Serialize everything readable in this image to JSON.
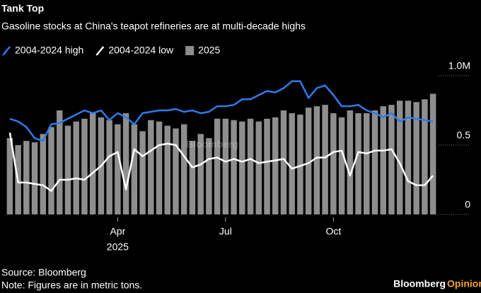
{
  "chart_data": {
    "type": "bar",
    "title": "Tank Top",
    "subtitle": "Gasoline stocks at China's teapot refineries are at multi-decade highs",
    "categories": [
      null,
      null,
      null,
      null,
      null,
      null,
      null,
      null,
      null,
      null,
      null,
      null,
      null,
      "Apr",
      null,
      null,
      null,
      null,
      null,
      null,
      null,
      null,
      null,
      null,
      null,
      null,
      "Jul",
      null,
      null,
      null,
      null,
      null,
      null,
      null,
      null,
      null,
      null,
      null,
      null,
      "Oct",
      null,
      null,
      null,
      null,
      null,
      null,
      null,
      null,
      null,
      null,
      null,
      null
    ],
    "x_year_label": "2025",
    "series": [
      {
        "name": "2004-2024 high",
        "type": "line",
        "color": "#2f7bea",
        "values": [
          0.69,
          0.67,
          0.63,
          0.55,
          0.53,
          0.65,
          0.66,
          0.69,
          0.72,
          0.75,
          0.73,
          0.75,
          0.68,
          0.73,
          0.7,
          0.65,
          0.73,
          0.74,
          0.75,
          0.75,
          0.76,
          0.74,
          0.75,
          0.73,
          0.74,
          0.78,
          0.78,
          0.79,
          0.83,
          0.83,
          0.86,
          0.89,
          0.88,
          0.91,
          0.96,
          0.96,
          0.84,
          0.91,
          0.93,
          0.86,
          0.78,
          0.78,
          0.79,
          0.75,
          0.73,
          0.7,
          0.73,
          0.67,
          0.7,
          0.69,
          0.68,
          0.67
        ]
      },
      {
        "name": "2004-2024 low",
        "type": "line",
        "color": "#ffffff",
        "values": [
          0.59,
          0.23,
          0.23,
          0.22,
          0.21,
          0.17,
          0.25,
          0.25,
          0.26,
          0.25,
          0.3,
          0.35,
          0.42,
          0.45,
          0.18,
          0.47,
          0.42,
          0.46,
          0.5,
          0.51,
          0.5,
          0.42,
          0.34,
          0.36,
          0.4,
          0.41,
          0.38,
          0.4,
          0.38,
          0.4,
          0.37,
          0.38,
          0.39,
          0.4,
          0.33,
          0.35,
          0.37,
          0.41,
          0.41,
          0.45,
          0.46,
          0.28,
          0.45,
          0.44,
          0.46,
          0.46,
          0.47,
          0.37,
          0.24,
          0.21,
          0.21,
          0.28
        ]
      },
      {
        "name": "2025",
        "type": "bar",
        "color": "#8e8e8e",
        "values": [
          0.55,
          0.5,
          0.53,
          0.52,
          0.58,
          0.63,
          0.75,
          0.64,
          0.67,
          0.69,
          0.73,
          0.7,
          0.68,
          0.65,
          0.73,
          0.65,
          0.6,
          0.68,
          0.67,
          0.64,
          0.62,
          0.65,
          0.53,
          0.58,
          0.55,
          0.69,
          0.69,
          0.68,
          0.67,
          0.69,
          0.67,
          0.69,
          0.7,
          0.75,
          0.73,
          0.72,
          0.77,
          0.78,
          0.79,
          0.73,
          0.7,
          0.75,
          0.73,
          0.73,
          0.75,
          0.78,
          0.79,
          0.82,
          0.82,
          0.81,
          0.83,
          0.87
        ]
      }
    ],
    "ylim": [
      0,
      1.0
    ],
    "yticks": [
      0,
      0.5,
      {
        "value": 1.0,
        "label": "1.0M"
      }
    ],
    "watermark": "Bloomberg",
    "source": "Source: Bloomberg",
    "note": "Note: Figures are in metric tons.",
    "logo_brand": "Bloomberg",
    "logo_section": "Opinion"
  }
}
